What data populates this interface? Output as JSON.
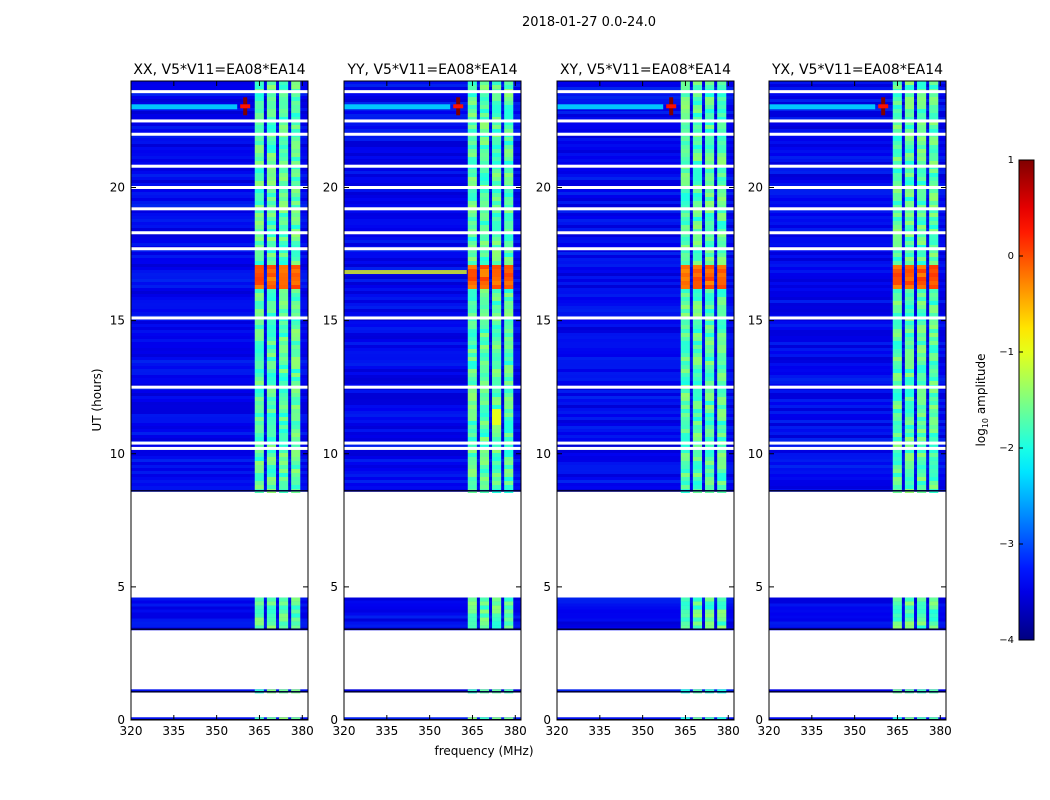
{
  "figure": {
    "suptitle": "2018-01-27 0.0-24.0",
    "shared_xlabel": "frequency (MHz)",
    "shared_ylabel": "UT (hours)"
  },
  "chart_data": {
    "type": "heatmap",
    "x_range_mhz": [
      320,
      382
    ],
    "y_range_hours": [
      0,
      24
    ],
    "x_ticks": [
      "320",
      "335",
      "350",
      "365",
      "380"
    ],
    "x_tick_values": [
      320,
      335,
      350,
      365,
      380
    ],
    "y_ticks": [
      "0",
      "5",
      "10",
      "15",
      "20"
    ],
    "y_tick_values": [
      0,
      5,
      10,
      15,
      20
    ],
    "panels": [
      {
        "title": "XX, V5*V11=EA08*EA14",
        "pol": "XX"
      },
      {
        "title": "YY, V5*V11=EA08*EA14",
        "pol": "YY"
      },
      {
        "title": "XY, V5*V11=EA08*EA14",
        "pol": "XY"
      },
      {
        "title": "YX, V5*V11=EA08*EA14",
        "pol": "YX"
      }
    ],
    "data_coverage_hours": [
      [
        0.0,
        0.1
      ],
      [
        1.05,
        1.15
      ],
      [
        3.4,
        4.6
      ],
      [
        8.6,
        24.0
      ]
    ],
    "flagged_gaps_hours": [
      10.2,
      10.4,
      12.5,
      15.1,
      17.7,
      18.3,
      19.2,
      20.0,
      20.8,
      22.0,
      22.5,
      23.6
    ],
    "bright_band_mhz": [
      363,
      380
    ],
    "rfi_burst": {
      "ut_hours": 23.05,
      "freq_mhz": 360,
      "log10_amplitude": 1.0
    },
    "colorbar": {
      "label_prefix": "log",
      "label_sub": "10",
      "label_suffix": " amplitude",
      "min": -4,
      "max": 1,
      "ticks": [
        "1",
        "0",
        "−1",
        "−2",
        "−3",
        "−4"
      ],
      "tick_values": [
        1,
        0,
        -1,
        -2,
        -3,
        -4
      ],
      "colormap": "jet"
    }
  }
}
